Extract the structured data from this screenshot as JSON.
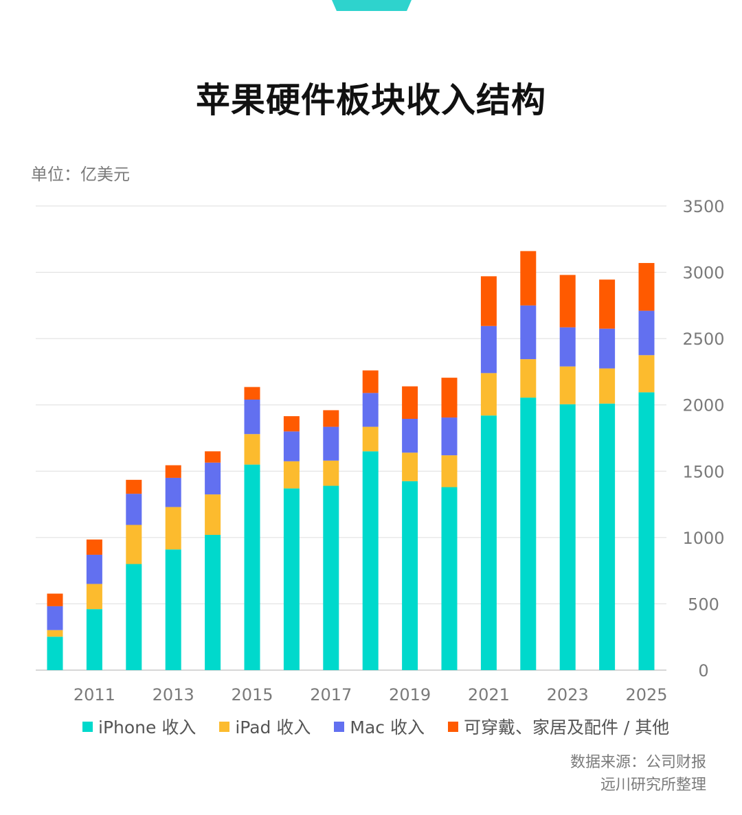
{
  "page": {
    "title": "苹果硬件板块收入结构",
    "unit": "单位：亿美元",
    "source_line1": "数据来源：公司财报",
    "source_line2": "远川研究所整理",
    "accent_color": "#2ed3cd"
  },
  "chart_data": {
    "type": "bar",
    "stacked": true,
    "title": "苹果硬件板块收入结构",
    "ylabel": "单位：亿美元",
    "ylim": [
      0,
      3500
    ],
    "yticks": [
      0,
      500,
      1000,
      1500,
      2000,
      2500,
      3000,
      3500
    ],
    "y_axis_side": "right",
    "grid": true,
    "legend_position": "bottom",
    "categories": [
      "2010",
      "2011",
      "2012",
      "2013",
      "2014",
      "2015",
      "2016",
      "2017",
      "2018",
      "2019",
      "2020",
      "2021",
      "2022",
      "2023",
      "2024",
      "2025"
    ],
    "x_tick_labels": [
      "",
      "2011",
      "",
      "2013",
      "",
      "2015",
      "",
      "2017",
      "",
      "2019",
      "",
      "2021",
      "",
      "2023",
      "",
      "2025"
    ],
    "series": [
      {
        "name": "iPhone 收入",
        "color": "#00d9cc",
        "values": [
          252,
          460,
          800,
          910,
          1020,
          1550,
          1370,
          1390,
          1650,
          1425,
          1380,
          1920,
          2055,
          2005,
          2010,
          2095
        ]
      },
      {
        "name": "iPad 收入",
        "color": "#fcbb2e",
        "values": [
          50,
          190,
          295,
          320,
          305,
          230,
          205,
          190,
          185,
          215,
          240,
          320,
          290,
          285,
          265,
          280
        ]
      },
      {
        "name": "Mac 收入",
        "color": "#6270f0",
        "values": [
          180,
          220,
          235,
          220,
          240,
          260,
          225,
          255,
          255,
          255,
          285,
          355,
          405,
          295,
          300,
          335
        ]
      },
      {
        "name": "可穿戴、家居及配件 / 其他",
        "color": "#ff5a00",
        "values": [
          95,
          115,
          105,
          95,
          85,
          95,
          115,
          125,
          170,
          245,
          300,
          375,
          410,
          395,
          370,
          360
        ]
      }
    ]
  }
}
